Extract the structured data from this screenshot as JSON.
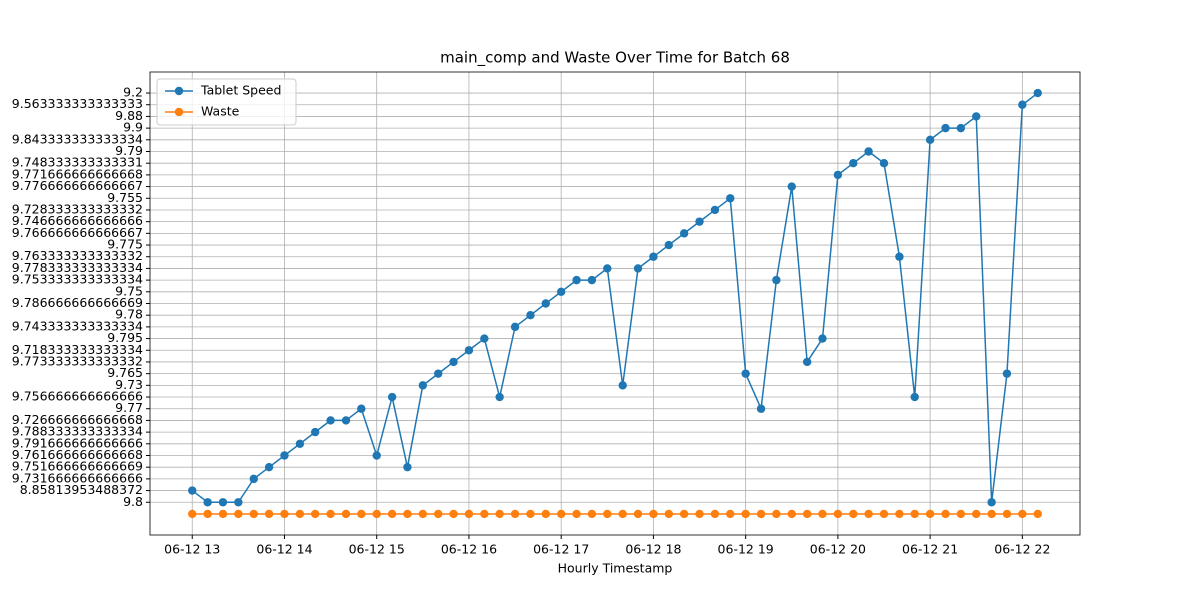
{
  "chart_data": {
    "type": "line",
    "title": "main_comp and Waste Over Time for Batch 68",
    "x_label": "Hourly Timestamp",
    "x": [
      13,
      13.167,
      13.333,
      13.5,
      13.667,
      13.833,
      14,
      14.167,
      14.333,
      14.5,
      14.667,
      14.833,
      15,
      15.167,
      15.333,
      15.5,
      15.667,
      15.833,
      16,
      16.167,
      16.333,
      16.5,
      16.667,
      16.833,
      17,
      17.167,
      17.333,
      17.5,
      17.667,
      17.833,
      18,
      18.167,
      18.333,
      18.5,
      18.667,
      18.833,
      19,
      19.167,
      19.333,
      19.5,
      19.667,
      19.833,
      20,
      20.167,
      20.333,
      20.5,
      20.667,
      20.833,
      21,
      21.167,
      21.333,
      21.5,
      21.667,
      21.833,
      22,
      22.167
    ],
    "series": [
      {
        "name": "Tablet Speed",
        "color": "#1f77b4",
        "values": [
          2,
          1,
          1,
          1,
          3,
          4,
          5,
          6,
          7,
          8,
          8,
          9,
          5,
          10,
          4,
          11,
          12,
          13,
          14,
          15,
          10,
          16,
          17,
          18,
          19,
          20,
          20,
          21,
          11,
          21,
          22,
          23,
          24,
          25,
          26,
          27,
          12,
          9,
          20,
          28,
          13,
          15,
          29,
          30,
          31,
          30,
          22,
          10,
          32,
          33,
          33,
          34,
          1,
          12,
          35,
          36
        ]
      },
      {
        "name": "Waste",
        "color": "#ff7f0e",
        "values": [
          0,
          0,
          0,
          0,
          0,
          0,
          0,
          0,
          0,
          0,
          0,
          0,
          0,
          0,
          0,
          0,
          0,
          0,
          0,
          0,
          0,
          0,
          0,
          0,
          0,
          0,
          0,
          0,
          0,
          0,
          0,
          0,
          0,
          0,
          0,
          0,
          0,
          0,
          0,
          0,
          0,
          0,
          0,
          0,
          0,
          0,
          0,
          0,
          0,
          0,
          0,
          0,
          0,
          0,
          0,
          0
        ]
      }
    ],
    "xlim": [
      12.542,
      22.625
    ],
    "xticks": [
      {
        "value": 13,
        "label": "06-12 13"
      },
      {
        "value": 14,
        "label": "06-12 14"
      },
      {
        "value": 15,
        "label": "06-12 15"
      },
      {
        "value": 16,
        "label": "06-12 16"
      },
      {
        "value": 17,
        "label": "06-12 17"
      },
      {
        "value": 18,
        "label": "06-12 18"
      },
      {
        "value": 19,
        "label": "06-12 19"
      },
      {
        "value": 20,
        "label": "06-12 20"
      },
      {
        "value": 21,
        "label": "06-12 21"
      },
      {
        "value": 22,
        "label": "06-12 22"
      }
    ],
    "ylim": [
      -1.8,
      37.8
    ],
    "yticks": [
      {
        "value": 1,
        "label": "9.8"
      },
      {
        "value": 2,
        "label": "8.85813953488372"
      },
      {
        "value": 3,
        "label": "9.731666666666666"
      },
      {
        "value": 4,
        "label": "9.751666666666669"
      },
      {
        "value": 5,
        "label": "9.761666666666668"
      },
      {
        "value": 6,
        "label": "9.791666666666666"
      },
      {
        "value": 7,
        "label": "9.788333333333334"
      },
      {
        "value": 8,
        "label": "9.726666666666668"
      },
      {
        "value": 9,
        "label": "9.77"
      },
      {
        "value": 10,
        "label": "9.756666666666666"
      },
      {
        "value": 11,
        "label": "9.73"
      },
      {
        "value": 12,
        "label": "9.765"
      },
      {
        "value": 13,
        "label": "9.773333333333332"
      },
      {
        "value": 14,
        "label": "9.718333333333334"
      },
      {
        "value": 15,
        "label": "9.795"
      },
      {
        "value": 16,
        "label": "9.743333333333334"
      },
      {
        "value": 17,
        "label": "9.78"
      },
      {
        "value": 18,
        "label": "9.786666666666669"
      },
      {
        "value": 19,
        "label": "9.75"
      },
      {
        "value": 20,
        "label": "9.753333333333334"
      },
      {
        "value": 21,
        "label": "9.778333333333334"
      },
      {
        "value": 22,
        "label": "9.763333333333332"
      },
      {
        "value": 23,
        "label": "9.775"
      },
      {
        "value": 24,
        "label": "9.766666666666667"
      },
      {
        "value": 25,
        "label": "9.746666666666666"
      },
      {
        "value": 26,
        "label": "9.728333333333332"
      },
      {
        "value": 27,
        "label": "9.755"
      },
      {
        "value": 28,
        "label": "9.776666666666667"
      },
      {
        "value": 29,
        "label": "9.771666666666668"
      },
      {
        "value": 30,
        "label": "9.748333333333331"
      },
      {
        "value": 31,
        "label": "9.79"
      },
      {
        "value": 32,
        "label": "9.843333333333334"
      },
      {
        "value": 33,
        "label": "9.9"
      },
      {
        "value": 34,
        "label": "9.88"
      },
      {
        "value": 35,
        "label": "9.563333333333333"
      },
      {
        "value": 36,
        "label": "9.2"
      }
    ],
    "grid": true,
    "legend": "upper left"
  }
}
